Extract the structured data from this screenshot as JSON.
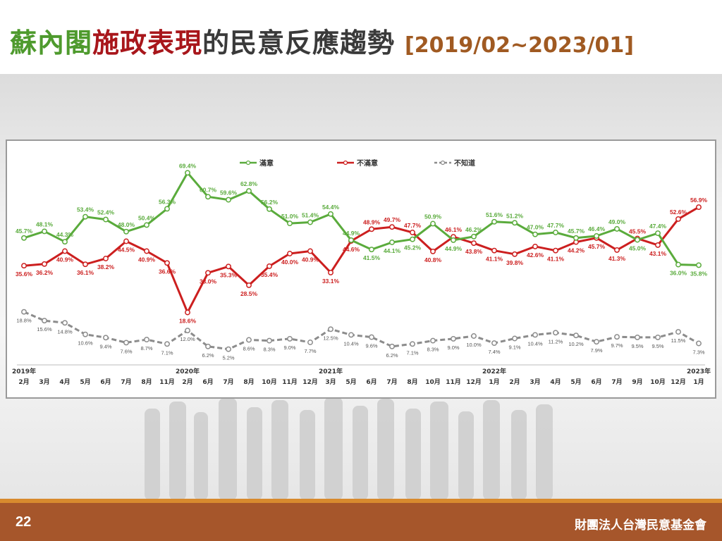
{
  "slide": {
    "title_part1": "蘇內閣",
    "title_part2": "施政表現",
    "title_part3": "的民意反應趨勢",
    "title_range": "[2019/02~2023/01]",
    "page_number": "22",
    "organization": "財團法人台灣民意基金會"
  },
  "colors": {
    "satisfied": "#5aab3c",
    "dissatisfied": "#cc1f1f",
    "unknown": "#8c8c8c",
    "title_green": "#4e9a2d",
    "title_red": "#a8161b",
    "footer": "#a6562b"
  },
  "chart_data": {
    "type": "line",
    "legend_position": "top",
    "grid": false,
    "title": "",
    "xlabel": "",
    "ylabel": "",
    "ylim": [
      0,
      75
    ],
    "categories": [
      "2月",
      "3月",
      "4月",
      "5月",
      "6月",
      "7月",
      "8月",
      "11月",
      "2月",
      "6月",
      "7月",
      "8月",
      "10月",
      "11月",
      "12月",
      "3月",
      "5月",
      "6月",
      "7月",
      "8月",
      "10月",
      "11月",
      "12月",
      "1月",
      "2月",
      "3月",
      "4月",
      "5月",
      "6月",
      "7月",
      "9月",
      "10月",
      "12月",
      "1月"
    ],
    "year_labels": [
      {
        "index": 0,
        "label": "2019年"
      },
      {
        "index": 8,
        "label": "2020年"
      },
      {
        "index": 15,
        "label": "2021年"
      },
      {
        "index": 23,
        "label": "2022年"
      },
      {
        "index": 33,
        "label": "2023年"
      }
    ],
    "series": [
      {
        "name": "滿意",
        "style": "solid",
        "values": [
          45.7,
          48.1,
          44.3,
          53.4,
          52.4,
          48.0,
          50.4,
          56.3,
          69.4,
          60.7,
          59.6,
          62.8,
          56.2,
          51.0,
          51.4,
          54.4,
          44.9,
          41.5,
          44.1,
          45.2,
          50.9,
          44.9,
          46.2,
          51.6,
          51.2,
          47.0,
          47.7,
          45.7,
          46.4,
          49.0,
          45.0,
          47.4,
          36.0,
          35.8
        ],
        "labels": [
          "45.7%",
          "48.1%",
          "44.3%",
          "53.4%",
          "52.4%",
          "48.0%",
          "50.4%",
          "56.3%",
          "69.4%",
          "60.7%",
          "59.6%",
          "62.8%",
          "56.2%",
          "51.0%",
          "51.4%",
          "54.4%",
          "44.9%",
          "41.5%",
          "44.1%",
          "45.2%",
          "50.9%",
          "44.9%",
          "46.2%",
          "51.6%",
          "51.2%",
          "47.0%",
          "47.7%",
          "45.7%",
          "46.4%",
          "49.0%",
          "45.0%",
          "47.4%",
          "36.0%",
          "35.8%"
        ]
      },
      {
        "name": "不滿意",
        "style": "solid",
        "values": [
          35.6,
          36.2,
          40.9,
          36.1,
          38.2,
          44.5,
          40.9,
          36.6,
          18.6,
          33.0,
          35.3,
          28.5,
          35.4,
          40.0,
          40.9,
          33.1,
          44.6,
          48.9,
          49.7,
          47.7,
          40.8,
          46.1,
          43.8,
          41.1,
          39.8,
          42.6,
          41.1,
          44.2,
          45.7,
          41.3,
          45.5,
          43.1,
          52.6,
          56.9
        ],
        "labels": [
          "35.6%",
          "36.2%",
          "40.9%",
          "36.1%",
          "38.2%",
          "44.5%",
          "40.9%",
          "36.6%",
          "18.6%",
          "33.0%",
          "35.3%",
          "28.5%",
          "35.4%",
          "40.0%",
          "40.9%",
          "33.1%",
          "44.6%",
          "48.9%",
          "49.7%",
          "47.7%",
          "40.8%",
          "46.1%",
          "43.8%",
          "41.1%",
          "39.8%",
          "42.6%",
          "41.1%",
          "44.2%",
          "45.7%",
          "41.3%",
          "45.5%",
          "43.1%",
          "52.6%",
          "56.9%"
        ]
      },
      {
        "name": "不知道",
        "style": "dashed",
        "values": [
          18.8,
          15.6,
          14.8,
          10.6,
          9.4,
          7.6,
          8.7,
          7.1,
          12.0,
          6.2,
          5.2,
          8.6,
          8.3,
          9.0,
          7.7,
          12.5,
          10.4,
          9.6,
          6.2,
          7.1,
          8.3,
          9.0,
          10.0,
          7.4,
          9.1,
          10.4,
          11.2,
          10.2,
          7.9,
          9.7,
          9.5,
          9.5,
          11.5,
          7.3
        ],
        "labels": [
          "18.8%",
          "15.6%",
          "14.8%",
          "10.6%",
          "9.4%",
          "7.6%",
          "8.7%",
          "7.1%",
          "12.0%",
          "6.2%",
          "5.2%",
          "8.6%",
          "8.3%",
          "9.0%",
          "7.7%",
          "12.5%",
          "10.4%",
          "9.6%",
          "6.2%",
          "7.1%",
          "8.3%",
          "9.0%",
          "10.0%",
          "7.4%",
          "9.1%",
          "10.4%",
          "11.2%",
          "10.2%",
          "7.9%",
          "9.7%",
          "9.5%",
          "9.5%",
          "11.5%",
          "7.3%"
        ]
      }
    ]
  }
}
